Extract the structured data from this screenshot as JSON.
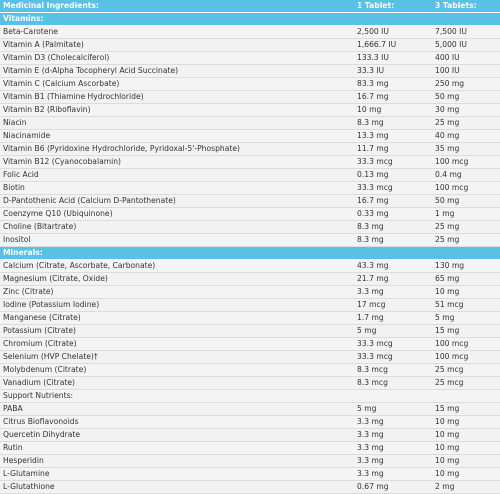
{
  "header": {
    "col1": "Medicinal Ingredients:",
    "col2": "1 Tablet:",
    "col3": "3 Tablets:"
  },
  "sections": [
    {
      "title": "Vitamins:",
      "rows": [
        {
          "name": "Beta-Carotene",
          "one": "2,500 IU",
          "three": "7,500 IU"
        },
        {
          "name": "Vitamin A (Palmitate)",
          "one": "1,666.7 IU",
          "three": "5,000 IU"
        },
        {
          "name": "Vitamin D3 (Cholecalciferol)",
          "one": "133.3 IU",
          "three": "400 IU"
        },
        {
          "name": "Vitamin E (d-Alpha Tocopheryl Acid Succinate)",
          "one": "33.3 IU",
          "three": "100 IU"
        },
        {
          "name": "Vitamin C (Calcium Ascorbate)",
          "one": "83.3 mg",
          "three": "250 mg"
        },
        {
          "name": "Vitamin B1 (Thiamine Hydrochloride)",
          "one": "16.7 mg",
          "three": "50 mg"
        },
        {
          "name": "Vitamin B2 (Riboflavin)",
          "one": "10 mg",
          "three": "30 mg"
        },
        {
          "name": "Niacin",
          "one": "8.3 mg",
          "three": "25 mg"
        },
        {
          "name": "Niacinamide",
          "one": "13.3 mg",
          "three": "40 mg"
        },
        {
          "name": "Vitamin B6 (Pyridoxine Hydrochloride, Pyridoxal-5'-Phosphate)",
          "one": "11.7 mg",
          "three": "35 mg"
        },
        {
          "name": "Vitamin B12 (Cyanocobalamin)",
          "one": "33.3 mcg",
          "three": "100 mcg"
        },
        {
          "name": "Folic Acid",
          "one": "0.13 mg",
          "three": "0.4 mg"
        },
        {
          "name": "Biotin",
          "one": "33.3 mcg",
          "three": "100 mcg"
        },
        {
          "name": "D-Pantothenic Acid (Calcium D-Pantothenate)",
          "one": "16.7 mg",
          "three": "50 mg"
        },
        {
          "name": "Coenzyme Q10 (Ubiquinone)",
          "one": "0.33 mg",
          "three": "1 mg"
        },
        {
          "name": "Choline (Bitartrate)",
          "one": "8.3 mg",
          "three": "25 mg"
        },
        {
          "name": "Inositol",
          "one": "8.3 mg",
          "three": "25 mg"
        }
      ]
    },
    {
      "title": "Minerals:",
      "rows": [
        {
          "name": "Calcium (Citrate, Ascorbate, Carbonate)",
          "one": "43.3 mg",
          "three": "130 mg"
        },
        {
          "name": "Magnesium (Citrate, Oxide)",
          "one": "21.7 mg",
          "three": "65 mg"
        },
        {
          "name": "Zinc (Citrate)",
          "one": "3.3 mg",
          "three": "10 mg"
        },
        {
          "name": "Iodine (Potassium Iodine)",
          "one": "17 mcg",
          "three": "51 mcg"
        },
        {
          "name": "Manganese (Citrate)",
          "one": "1.7 mg",
          "three": "5 mg"
        },
        {
          "name": "Potassium (Citrate)",
          "one": "5 mg",
          "three": "15 mg"
        },
        {
          "name": "Chromium (Citrate)",
          "one": "33.3 mcg",
          "three": "100 mcg"
        },
        {
          "name": "Selenium (HVP Chelate)†",
          "one": "33.3 mcg",
          "three": "100 mcg"
        },
        {
          "name": "Molybdenum (Citrate)",
          "one": "8.3 mcg",
          "three": "25 mcg"
        },
        {
          "name": "Vanadium (Citrate)",
          "one": "8.3 mcg",
          "three": "25 mcg"
        },
        {
          "name": "Support Nutrients:",
          "one": "",
          "three": ""
        },
        {
          "name": "PABA",
          "one": "5 mg",
          "three": "15 mg"
        },
        {
          "name": "Citrus Bioflavonoids",
          "one": "3.3 mg",
          "three": "10 mg"
        },
        {
          "name": "Quercetin Dihydrate",
          "one": "3.3 mg",
          "three": "10 mg"
        },
        {
          "name": "Rutin",
          "one": "3.3 mg",
          "three": "10 mg"
        },
        {
          "name": "Hesperidin",
          "one": "3.3 mg",
          "three": "10 mg"
        },
        {
          "name": "L-Glutamine",
          "one": "3.3 mg",
          "three": "10 mg"
        },
        {
          "name": "L-Glutathione",
          "one": "0.67 mg",
          "three": "2 mg"
        }
      ]
    }
  ]
}
